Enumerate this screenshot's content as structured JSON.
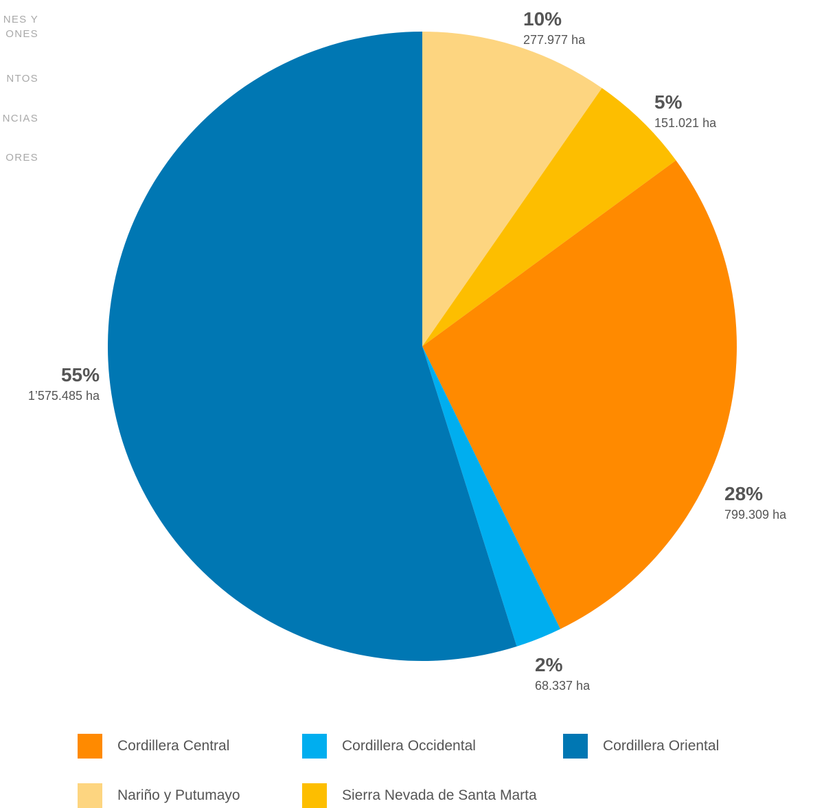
{
  "side_menu": {
    "items": [
      "NES Y\nONES",
      "NTOS",
      "NCIAS",
      "ORES"
    ]
  },
  "chart_data": {
    "type": "pie",
    "title": "",
    "start_angle_deg": 0,
    "direction": "clockwise",
    "slices": [
      {
        "label": "Nariño y Putumayo",
        "percent": 10,
        "percent_label": "10%",
        "value": 277977,
        "value_label": "277.977 ha",
        "color": "#FDD580"
      },
      {
        "label": "Sierra Nevada de Santa Marta",
        "percent": 5,
        "percent_label": "5%",
        "value": 151021,
        "value_label": "151.021 ha",
        "color": "#FDBE00"
      },
      {
        "label": "Cordillera Central",
        "percent": 28,
        "percent_label": "28%",
        "value": 799309,
        "value_label": "799.309 ha",
        "color": "#FF8A00"
      },
      {
        "label": "Cordillera Occidental",
        "percent": 2,
        "percent_label": "2%",
        "value": 68337,
        "value_label": "68.337 ha",
        "color": "#00AEEF"
      },
      {
        "label": "Cordillera Oriental",
        "percent": 55,
        "percent_label": "55%",
        "value": 1575485,
        "value_label": "1’575.485 ha",
        "color": "#0077B3"
      }
    ],
    "legend": {
      "placement": "bottom",
      "entries": [
        {
          "label": "Cordillera Central",
          "color": "#FF8A00"
        },
        {
          "label": "Cordillera Occidental",
          "color": "#00AEEF"
        },
        {
          "label": "Cordillera Oriental",
          "color": "#0077B3"
        },
        {
          "label": "Nariño y Putumayo",
          "color": "#FDD580"
        },
        {
          "label": "Sierra Nevada de Santa Marta",
          "color": "#FDBE00"
        }
      ]
    }
  }
}
